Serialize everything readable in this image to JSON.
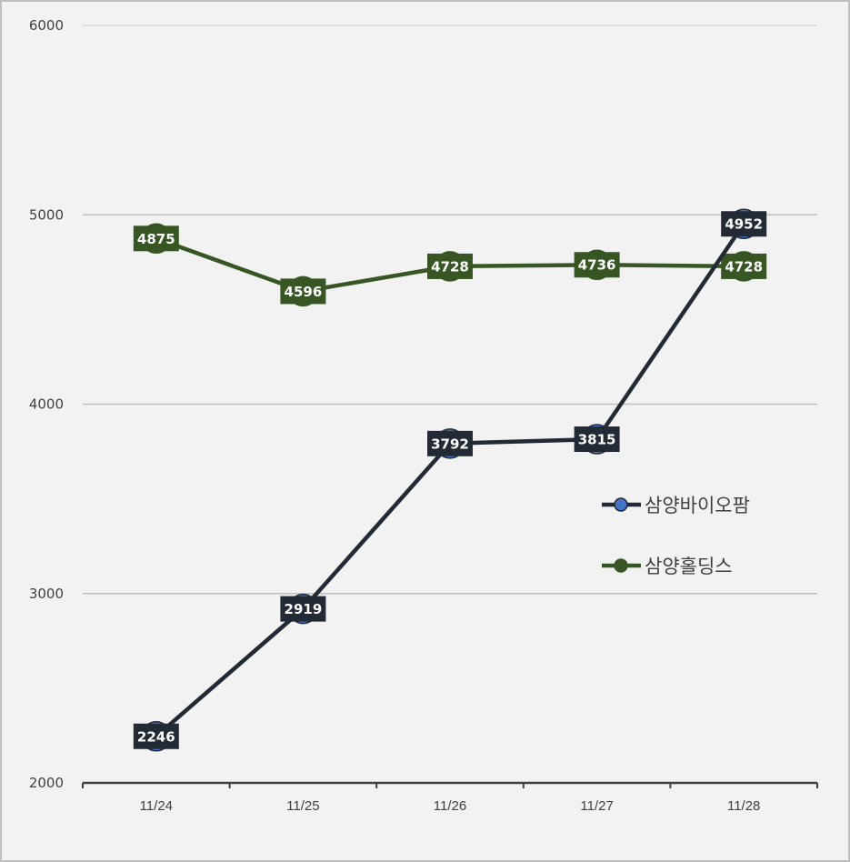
{
  "chart_data": {
    "type": "line",
    "title": "",
    "xlabel": "",
    "ylabel": "",
    "categories": [
      "11/24",
      "11/25",
      "11/26",
      "11/27",
      "11/28"
    ],
    "series": [
      {
        "name": "삼양바이오팜",
        "values": [
          2246,
          2919,
          3792,
          3815,
          4952
        ],
        "line_color": "#222a35",
        "marker_color": "#4472c4",
        "label_bg": "#222a35"
      },
      {
        "name": "삼양홀딩스",
        "values": [
          4875,
          4596,
          4728,
          4736,
          4728
        ],
        "line_color": "#375623",
        "marker_color": "#375623",
        "label_bg": "#375623"
      }
    ],
    "ylim": [
      2000,
      6000
    ],
    "yticks": [
      2000,
      3000,
      4000,
      5000,
      6000
    ],
    "grid": true,
    "legend_position": "right-center",
    "data_labels": true
  }
}
